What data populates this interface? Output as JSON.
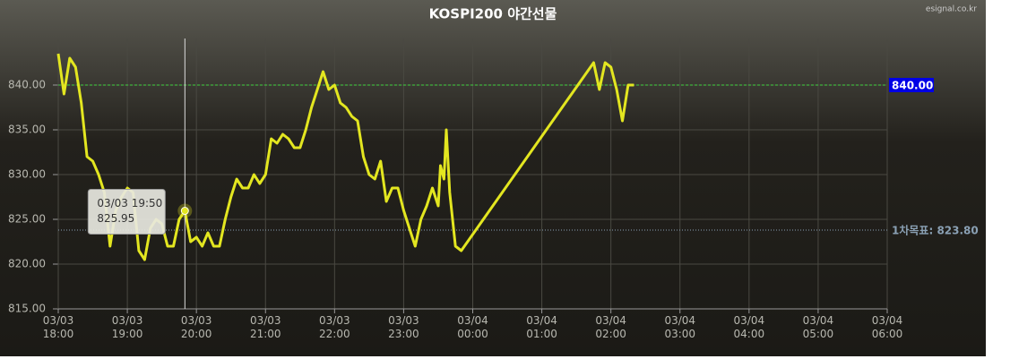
{
  "chart_data": {
    "type": "line",
    "title": "KOSPI200 야간선물",
    "source": "esignal.co.kr",
    "x": [
      "03/03 18:00",
      "03/03 18:05",
      "03/03 18:10",
      "03/03 18:15",
      "03/03 18:20",
      "03/03 18:25",
      "03/03 18:30",
      "03/03 18:35",
      "03/03 18:40",
      "03/03 18:45",
      "03/03 18:50",
      "03/03 18:55",
      "03/03 19:00",
      "03/03 19:05",
      "03/03 19:10",
      "03/03 19:15",
      "03/03 19:20",
      "03/03 19:25",
      "03/03 19:30",
      "03/03 19:35",
      "03/03 19:40",
      "03/03 19:45",
      "03/03 19:50",
      "03/03 19:55",
      "03/03 20:00",
      "03/03 20:05",
      "03/03 20:10",
      "03/03 20:15",
      "03/03 20:20",
      "03/03 20:25",
      "03/03 20:30",
      "03/03 20:35",
      "03/03 20:40",
      "03/03 20:45",
      "03/03 20:50",
      "03/03 20:55",
      "03/03 21:00",
      "03/03 21:05",
      "03/03 21:10",
      "03/03 21:15",
      "03/03 21:20",
      "03/03 21:25",
      "03/03 21:30",
      "03/03 21:35",
      "03/03 21:40",
      "03/03 21:45",
      "03/03 21:50",
      "03/03 21:55",
      "03/03 22:00",
      "03/03 22:05",
      "03/03 22:10",
      "03/03 22:15",
      "03/03 22:20",
      "03/03 22:25",
      "03/03 22:30",
      "03/03 22:35",
      "03/03 22:40",
      "03/03 22:45",
      "03/03 22:50",
      "03/03 22:55",
      "03/03 23:00",
      "03/03 23:05",
      "03/03 23:10",
      "03/03 23:15",
      "03/03 23:20",
      "03/03 23:25",
      "03/03 23:30",
      "03/03 23:32",
      "03/03 23:35",
      "03/03 23:37",
      "03/03 23:40",
      "03/03 23:45",
      "03/03 23:50",
      "03/04 01:45",
      "03/04 01:50",
      "03/04 01:55",
      "03/04 02:00",
      "03/04 02:05",
      "03/04 02:10",
      "03/04 02:15",
      "03/04 02:20"
    ],
    "series": [
      {
        "color": "#e3e620",
        "values": [
          843.5,
          839,
          843,
          842,
          838,
          832,
          831.5,
          830,
          828,
          822,
          826,
          827.5,
          828.5,
          828,
          821.5,
          820.5,
          824,
          825,
          824.5,
          822,
          822,
          825,
          825.95,
          822.5,
          823,
          822,
          823.5,
          822,
          822,
          825,
          827.5,
          829.5,
          828.5,
          828.5,
          830,
          829,
          830,
          834,
          833.5,
          834.5,
          834,
          833,
          833,
          835,
          837.5,
          839.5,
          841.5,
          839.5,
          840,
          838,
          837.5,
          836.5,
          836,
          832,
          830,
          829.5,
          831.5,
          827,
          828.5,
          828.5,
          826,
          824,
          822,
          825,
          826.5,
          828.5,
          826.5,
          831,
          829.5,
          835,
          828,
          822,
          821.5,
          842.5,
          839.5,
          842.5,
          842,
          839.5,
          836,
          840,
          840
        ]
      }
    ],
    "xlim": [
      "03/03 18:00",
      "03/04 06:00"
    ],
    "xticks": [
      "03/03 18:00",
      "03/03 19:00",
      "03/03 20:00",
      "03/03 21:00",
      "03/03 22:00",
      "03/03 23:00",
      "03/04 00:00",
      "03/04 01:00",
      "03/04 02:00",
      "03/04 03:00",
      "03/04 04:00",
      "03/04 05:00",
      "03/04 06:00"
    ],
    "ylim": [
      815,
      845
    ],
    "yticks": [
      {
        "value": 815,
        "label": "815.00"
      },
      {
        "value": 820,
        "label": "820.00"
      },
      {
        "value": 825,
        "label": "825.00"
      },
      {
        "value": 830,
        "label": "830.00"
      },
      {
        "value": 835,
        "label": "835.00"
      },
      {
        "value": 840,
        "label": "840.00"
      }
    ],
    "grid": true,
    "reference_lines": [
      {
        "value": 840,
        "label": "840.00",
        "color": "#3fd23f",
        "label_background": "#0000e6"
      },
      {
        "value": 823.8,
        "label": "1차목표: 823.80",
        "color": "#8aa0b4"
      }
    ],
    "tooltip": {
      "x": "03/03 19:50",
      "value": 825.95
    }
  }
}
